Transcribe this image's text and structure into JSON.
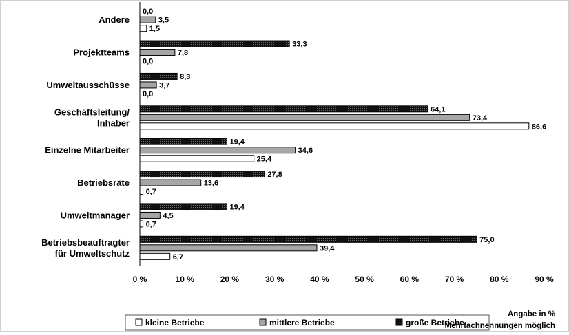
{
  "chart_data": {
    "type": "bar",
    "orientation": "horizontal",
    "categories": [
      [
        "Andere"
      ],
      [
        "Projektteams"
      ],
      [
        "Umweltausschüsse"
      ],
      [
        "Geschäftsleitung/",
        "Inhaber"
      ],
      [
        "Einzelne Mitarbeiter"
      ],
      [
        "Betriebsräte"
      ],
      [
        "Umweltmanager"
      ],
      [
        "Betriebsbeauftragter",
        "für Umweltschutz"
      ]
    ],
    "series": [
      {
        "name": "große Betriebe",
        "color": "#111111",
        "values": [
          0.0,
          33.3,
          8.3,
          64.1,
          19.4,
          27.8,
          19.4,
          75.0
        ],
        "labels": [
          "0,0",
          "33,3",
          "8,3",
          "64,1",
          "19,4",
          "27,8",
          "19,4",
          "75,0"
        ]
      },
      {
        "name": "mittlere Betriebe",
        "color": "#a6a6a6",
        "values": [
          3.5,
          7.8,
          3.7,
          73.4,
          34.6,
          13.6,
          4.5,
          39.4
        ],
        "labels": [
          "3,5",
          "7,8",
          "3,7",
          "73,4",
          "34,6",
          "13,6",
          "4,5",
          "39,4"
        ]
      },
      {
        "name": "kleine Betriebe",
        "color": "#ffffff",
        "values": [
          1.5,
          0.0,
          0.0,
          86.6,
          25.4,
          0.7,
          0.7,
          6.7
        ],
        "labels": [
          "1,5",
          "0,0",
          "0,0",
          "86,6",
          "25,4",
          "0,7",
          "0,7",
          "6,7"
        ]
      }
    ],
    "legend_order": [
      "kleine Betriebe",
      "mittlere Betriebe",
      "große Betriebe"
    ],
    "xlim": [
      0,
      90
    ],
    "xticks": [
      0,
      10,
      20,
      30,
      40,
      50,
      60,
      70,
      80,
      90
    ],
    "xtick_labels": [
      "0 %",
      "10 %",
      "20 %",
      "30 %",
      "40 %",
      "50 %",
      "60 %",
      "70 %",
      "80 %",
      "90 %"
    ],
    "note_lines": [
      "Angabe in %",
      "Mehrfachnennungen möglich"
    ],
    "legend_position": "bottom",
    "grid": false
  }
}
